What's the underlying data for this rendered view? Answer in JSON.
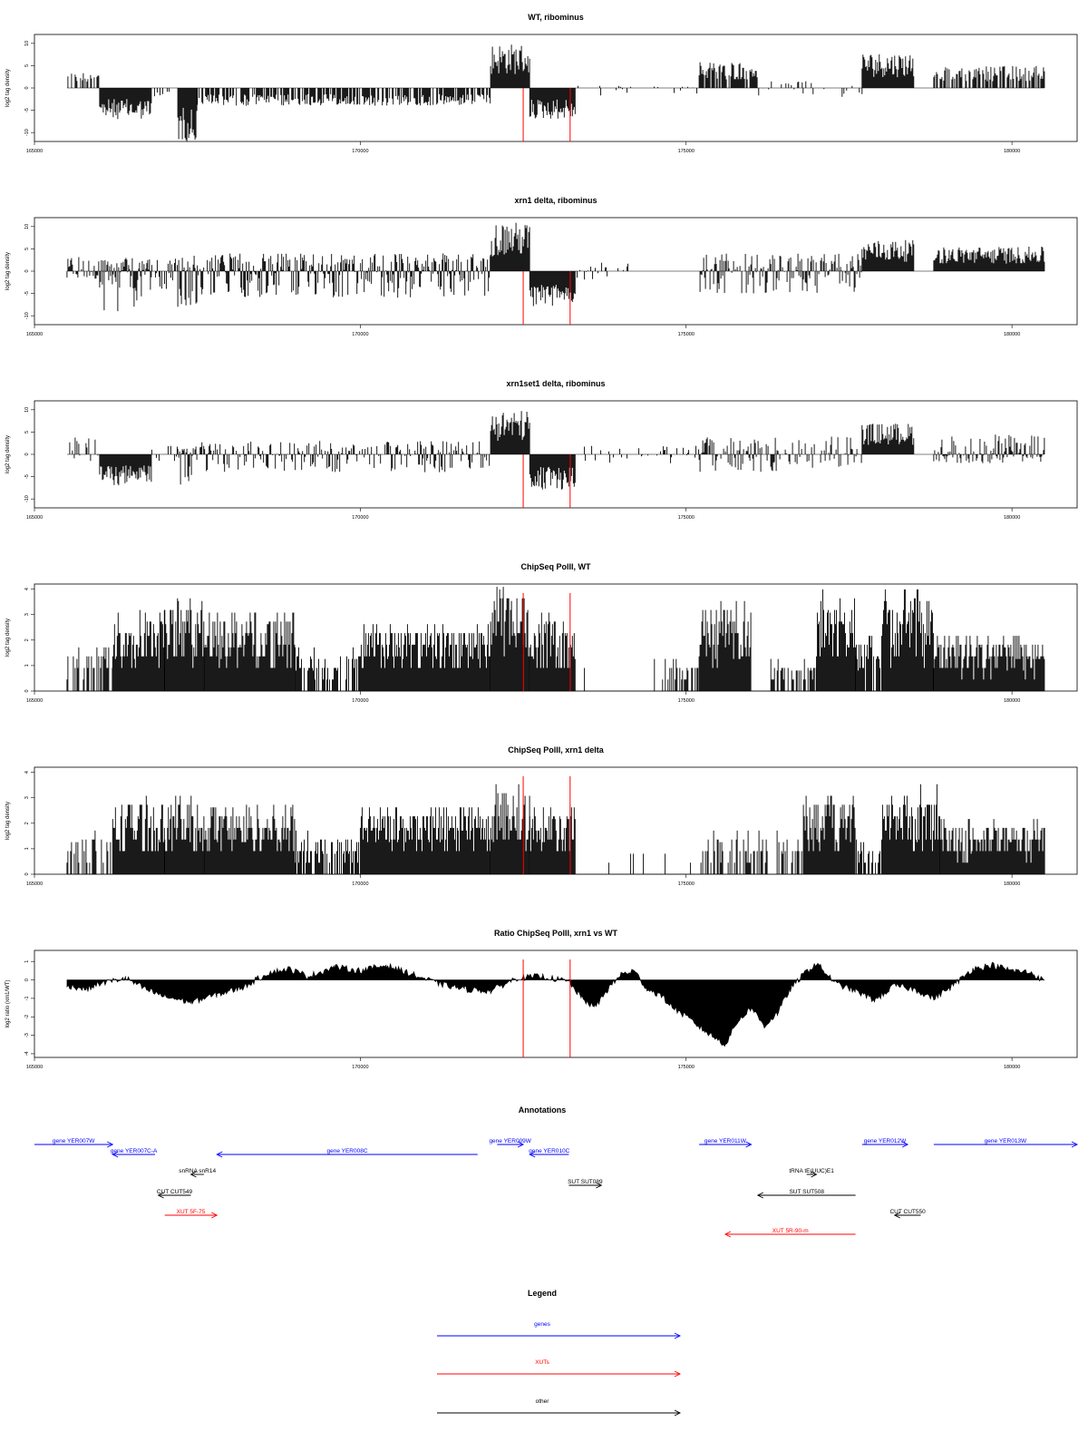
{
  "colors": {
    "gene": "#0000ff",
    "xut": "#ff0000",
    "other": "#000000",
    "marker": "#ff0000",
    "bars": "#000000"
  },
  "markers": [
    172500,
    173220
  ],
  "chart_data": [
    {
      "type": "bar",
      "title": "WT, ribominus",
      "ylabel": "log2 tag density",
      "xlim": [
        165000,
        181000
      ],
      "ylim": [
        -12,
        12
      ],
      "yticks": [
        -10,
        -5,
        0,
        5,
        10
      ],
      "ytick_labels": [
        "-10",
        "-5",
        "0",
        "5",
        "10"
      ],
      "xticks": [
        165000,
        170000,
        175000,
        180000
      ],
      "xtick_labels": [
        "165000",
        "170000",
        "175000",
        "180000"
      ],
      "segments": [
        {
          "x": [
            165500,
            166000
          ],
          "min": 0,
          "max": 3.5,
          "density": 0.5
        },
        {
          "x": [
            166000,
            166800
          ],
          "min": -7,
          "max": 0,
          "density": 1
        },
        {
          "x": [
            166800,
            167200
          ],
          "min": -2,
          "max": 0,
          "density": 0.3
        },
        {
          "x": [
            167200,
            167500
          ],
          "min": -12,
          "max": 0,
          "density": 1
        },
        {
          "x": [
            167500,
            172000
          ],
          "min": -4,
          "max": 0,
          "density": 0.7
        },
        {
          "x": [
            172000,
            172600
          ],
          "min": 0,
          "max": 10,
          "density": 1
        },
        {
          "x": [
            172600,
            173300
          ],
          "min": -7,
          "max": 0,
          "density": 1
        },
        {
          "x": [
            173300,
            175200
          ],
          "min": -2,
          "max": 0.5,
          "density": 0.1
        },
        {
          "x": [
            175200,
            176100
          ],
          "min": 0,
          "max": 6,
          "density": 0.8
        },
        {
          "x": [
            176100,
            177700
          ],
          "min": -2,
          "max": 1.5,
          "density": 0.2
        },
        {
          "x": [
            177700,
            178500
          ],
          "min": 0,
          "max": 8,
          "density": 1
        },
        {
          "x": [
            178800,
            180500
          ],
          "min": 0,
          "max": 5,
          "density": 0.7
        }
      ]
    },
    {
      "type": "bar",
      "title": "xrn1 delta, ribominus",
      "ylabel": "log2 tag density",
      "xlim": [
        165000,
        181000
      ],
      "ylim": [
        -12,
        12
      ],
      "yticks": [
        -10,
        -5,
        0,
        5,
        10
      ],
      "ytick_labels": [
        "-10",
        "-5",
        "0",
        "5",
        "10"
      ],
      "xticks": [
        165000,
        170000,
        175000,
        180000
      ],
      "xtick_labels": [
        "165000",
        "170000",
        "175000",
        "180000"
      ],
      "segments": [
        {
          "x": [
            165500,
            166000
          ],
          "min": -2,
          "max": 5,
          "density": 0.8
        },
        {
          "x": [
            166000,
            166800
          ],
          "min": -9,
          "max": 3,
          "density": 1
        },
        {
          "x": [
            166800,
            167200
          ],
          "min": -4,
          "max": 3,
          "density": 0.6
        },
        {
          "x": [
            167200,
            167500
          ],
          "min": -10,
          "max": 4,
          "density": 1
        },
        {
          "x": [
            167500,
            172000
          ],
          "min": -6,
          "max": 4,
          "density": 0.9
        },
        {
          "x": [
            172000,
            172600
          ],
          "min": 0,
          "max": 11,
          "density": 1
        },
        {
          "x": [
            172600,
            173300
          ],
          "min": -8,
          "max": 0,
          "density": 1
        },
        {
          "x": [
            173300,
            174200
          ],
          "min": -2,
          "max": 2,
          "density": 0.3
        },
        {
          "x": [
            175200,
            177700
          ],
          "min": -5,
          "max": 4,
          "density": 0.8
        },
        {
          "x": [
            177700,
            178500
          ],
          "min": 0,
          "max": 7,
          "density": 1
        },
        {
          "x": [
            178800,
            180500
          ],
          "min": 0,
          "max": 5.5,
          "density": 1
        }
      ]
    },
    {
      "type": "bar",
      "title": "xrn1set1 delta, ribominus",
      "ylabel": "log2 tag density",
      "xlim": [
        165000,
        181000
      ],
      "ylim": [
        -12,
        12
      ],
      "yticks": [
        -10,
        -5,
        0,
        5,
        10
      ],
      "ytick_labels": [
        "-10",
        "-5",
        "0",
        "5",
        "10"
      ],
      "xticks": [
        165000,
        170000,
        175000,
        180000
      ],
      "xtick_labels": [
        "165000",
        "170000",
        "175000",
        "180000"
      ],
      "segments": [
        {
          "x": [
            165500,
            166000
          ],
          "min": -2,
          "max": 4,
          "density": 0.5
        },
        {
          "x": [
            166000,
            166800
          ],
          "min": -7,
          "max": 0,
          "density": 1
        },
        {
          "x": [
            166800,
            167200
          ],
          "min": -2,
          "max": 2,
          "density": 0.3
        },
        {
          "x": [
            167200,
            167500
          ],
          "min": -11,
          "max": 2,
          "density": 1
        },
        {
          "x": [
            167500,
            172000
          ],
          "min": -4,
          "max": 3,
          "density": 0.6
        },
        {
          "x": [
            172000,
            172600
          ],
          "min": 0,
          "max": 10,
          "density": 1
        },
        {
          "x": [
            172600,
            173300
          ],
          "min": -8,
          "max": 0,
          "density": 1
        },
        {
          "x": [
            173300,
            175200
          ],
          "min": -2,
          "max": 2,
          "density": 0.2
        },
        {
          "x": [
            175200,
            177700
          ],
          "min": -4,
          "max": 4,
          "density": 0.6
        },
        {
          "x": [
            177700,
            178500
          ],
          "min": 0,
          "max": 7,
          "density": 1
        },
        {
          "x": [
            178800,
            180500
          ],
          "min": -2,
          "max": 4.5,
          "density": 0.8
        }
      ]
    },
    {
      "type": "bar",
      "title": "ChipSeq PolII, WT",
      "ylabel": "log2 tag density",
      "xlim": [
        165000,
        181000
      ],
      "ylim": [
        0,
        4.2
      ],
      "yticks": [
        0,
        1,
        2,
        3,
        4
      ],
      "ytick_labels": [
        "0",
        "1",
        "2",
        "3",
        "4"
      ],
      "xticks": [
        165000,
        170000,
        175000,
        180000
      ],
      "xtick_labels": [
        "165000",
        "170000",
        "175000",
        "180000"
      ],
      "segments": [
        {
          "x": [
            165500,
            166200
          ],
          "min": 0,
          "max": 1.6,
          "density": 0.6
        },
        {
          "x": [
            166200,
            167000
          ],
          "min": 0,
          "max": 3.2,
          "density": 1
        },
        {
          "x": [
            167000,
            167600
          ],
          "min": 0,
          "max": 3.5,
          "density": 1
        },
        {
          "x": [
            167600,
            169000
          ],
          "min": 0,
          "max": 3,
          "density": 1
        },
        {
          "x": [
            169000,
            170000
          ],
          "min": 0,
          "max": 1.6,
          "density": 0.6
        },
        {
          "x": [
            170000,
            172000
          ],
          "min": 0,
          "max": 2.5,
          "density": 1
        },
        {
          "x": [
            172000,
            172600
          ],
          "min": 0,
          "max": 4,
          "density": 1
        },
        {
          "x": [
            172600,
            173300
          ],
          "min": 0,
          "max": 2.8,
          "density": 1
        },
        {
          "x": [
            173300,
            174500
          ],
          "min": 0,
          "max": 1,
          "density": 0.05
        },
        {
          "x": [
            174500,
            175200
          ],
          "min": 0,
          "max": 1,
          "density": 0.4
        },
        {
          "x": [
            175200,
            176000
          ],
          "min": 0,
          "max": 3.4,
          "density": 1
        },
        {
          "x": [
            176300,
            177000
          ],
          "min": 0,
          "max": 1,
          "density": 0.6
        },
        {
          "x": [
            177000,
            177600
          ],
          "min": 0,
          "max": 3.6,
          "density": 1
        },
        {
          "x": [
            177600,
            178000
          ],
          "min": 0,
          "max": 2,
          "density": 0.8
        },
        {
          "x": [
            178000,
            178800
          ],
          "min": 0,
          "max": 3.6,
          "density": 1
        },
        {
          "x": [
            178800,
            180500
          ],
          "min": 0,
          "max": 2,
          "density": 1
        }
      ]
    },
    {
      "type": "bar",
      "title": "ChipSeq PolII, xrn1 delta",
      "ylabel": "log2 tag density",
      "xlim": [
        165000,
        181000
      ],
      "ylim": [
        0,
        4.2
      ],
      "yticks": [
        0,
        1,
        2,
        3,
        4
      ],
      "ytick_labels": [
        "0",
        "1",
        "2",
        "3",
        "4"
      ],
      "xticks": [
        165000,
        170000,
        175000,
        180000
      ],
      "xtick_labels": [
        "165000",
        "170000",
        "175000",
        "180000"
      ],
      "segments": [
        {
          "x": [
            165500,
            166200
          ],
          "min": 0,
          "max": 1.4,
          "density": 0.5
        },
        {
          "x": [
            166200,
            167000
          ],
          "min": 0,
          "max": 2.8,
          "density": 1
        },
        {
          "x": [
            167000,
            167600
          ],
          "min": 0,
          "max": 2.8,
          "density": 1
        },
        {
          "x": [
            167600,
            169000
          ],
          "min": 0,
          "max": 2.6,
          "density": 1
        },
        {
          "x": [
            169000,
            170000
          ],
          "min": 0,
          "max": 1.4,
          "density": 0.6
        },
        {
          "x": [
            170000,
            172000
          ],
          "min": 0,
          "max": 2.5,
          "density": 1
        },
        {
          "x": [
            172000,
            172600
          ],
          "min": 0,
          "max": 3.3,
          "density": 1
        },
        {
          "x": [
            172600,
            173300
          ],
          "min": 0,
          "max": 2.4,
          "density": 1
        },
        {
          "x": [
            173300,
            175200
          ],
          "min": 0,
          "max": 0.7,
          "density": 0.05
        },
        {
          "x": [
            175200,
            176800
          ],
          "min": 0,
          "max": 1.4,
          "density": 0.4
        },
        {
          "x": [
            176800,
            177600
          ],
          "min": 0,
          "max": 3,
          "density": 1
        },
        {
          "x": [
            177600,
            178000
          ],
          "min": 0,
          "max": 1.2,
          "density": 0.5
        },
        {
          "x": [
            178000,
            178900
          ],
          "min": 0,
          "max": 3,
          "density": 1
        },
        {
          "x": [
            178900,
            180500
          ],
          "min": 0,
          "max": 2,
          "density": 1
        }
      ]
    },
    {
      "type": "area",
      "title": "Ratio ChipSeq PolII, xrn1 vs WT",
      "ylabel": "log2 ratio (xrn1/WT)",
      "xlim": [
        165000,
        181000
      ],
      "ylim": [
        -4.2,
        1.6
      ],
      "yticks": [
        -4,
        -3,
        -2,
        -1,
        0,
        1
      ],
      "ytick_labels": [
        "-4",
        "-3",
        "-2",
        "-1",
        "0",
        "1"
      ],
      "xticks": [
        165000,
        170000,
        175000,
        180000
      ],
      "xtick_labels": [
        "165000",
        "170000",
        "175000",
        "180000"
      ],
      "x": [
        165500,
        165800,
        166000,
        166400,
        166700,
        167000,
        167400,
        167800,
        168200,
        168600,
        168900,
        169200,
        169600,
        170000,
        170400,
        170800,
        171200,
        171600,
        172000,
        172400,
        172800,
        173200,
        173400,
        173600,
        173800,
        174000,
        174200,
        174400,
        174600,
        174800,
        175000,
        175300,
        175600,
        175800,
        176000,
        176200,
        176400,
        176600,
        176800,
        177000,
        177300,
        177600,
        177900,
        178200,
        178500,
        178800,
        179100,
        179400,
        179700,
        180000,
        180300,
        180500
      ],
      "y": [
        -0.3,
        -0.5,
        -0.2,
        0.1,
        -0.5,
        -0.9,
        -1.2,
        -0.8,
        -0.4,
        0.4,
        0.6,
        0.2,
        0.7,
        0.5,
        0.8,
        0.3,
        -0.2,
        -0.5,
        -0.6,
        0.1,
        0.2,
        -0.1,
        -1,
        -1.5,
        -0.5,
        0.3,
        0.5,
        -0.5,
        -0.8,
        -1.5,
        -2,
        -2.8,
        -3.5,
        -2.2,
        -1.5,
        -2.5,
        -1.8,
        -0.5,
        0.3,
        0.9,
        -0.2,
        -0.6,
        -1.1,
        -0.3,
        -0.5,
        -1,
        -0.3,
        0.6,
        0.8,
        0.5,
        0.4,
        -0.1
      ]
    }
  ],
  "annotations": {
    "title": "Annotations",
    "features": [
      {
        "label": "gene YER007W",
        "kind": "gene",
        "start": 165000,
        "end": 166200,
        "dir": "right",
        "row": 0
      },
      {
        "label": "gene YER007C-A",
        "kind": "gene",
        "start": 166200,
        "end": 166850,
        "dir": "left",
        "row": 1
      },
      {
        "label": "gene YER008C",
        "kind": "gene",
        "start": 167800,
        "end": 171800,
        "dir": "left",
        "row": 1
      },
      {
        "label": "snRNA snR14",
        "kind": "other",
        "start": 167400,
        "end": 167600,
        "dir": "left",
        "row": 2
      },
      {
        "label": "CUT CUT549",
        "kind": "other",
        "start": 166900,
        "end": 167400,
        "dir": "left",
        "row": 4
      },
      {
        "label": "XUT 5F-75",
        "kind": "xut",
        "start": 167000,
        "end": 167800,
        "dir": "right",
        "row": 5
      },
      {
        "label": "gene YER009W",
        "kind": "gene",
        "start": 172100,
        "end": 172500,
        "dir": "right",
        "row": 0
      },
      {
        "label": "gene YER010C",
        "kind": "gene",
        "start": 172600,
        "end": 173200,
        "dir": "left",
        "row": 1
      },
      {
        "label": "SUT SUT089",
        "kind": "other",
        "start": 173200,
        "end": 173700,
        "dir": "right",
        "row": 3
      },
      {
        "label": "gene YER011W",
        "kind": "gene",
        "start": 175200,
        "end": 176000,
        "dir": "right",
        "row": 0
      },
      {
        "label": "tRNA tE(UUC)E1",
        "kind": "other",
        "start": 176850,
        "end": 177000,
        "dir": "right",
        "row": 2
      },
      {
        "label": "SUT SUT508",
        "kind": "other",
        "start": 176100,
        "end": 177600,
        "dir": "left",
        "row": 4
      },
      {
        "label": "XUT 5R-90-m",
        "kind": "xut",
        "start": 175600,
        "end": 177600,
        "dir": "left",
        "row": 6
      },
      {
        "label": "gene YER012W",
        "kind": "gene",
        "start": 177700,
        "end": 178400,
        "dir": "right",
        "row": 0
      },
      {
        "label": "CUT CUT550",
        "kind": "other",
        "start": 178200,
        "end": 178600,
        "dir": "left",
        "row": 5
      },
      {
        "label": "gene YER013W",
        "kind": "gene",
        "start": 178800,
        "end": 181000,
        "dir": "right",
        "row": 0
      }
    ]
  },
  "legend": {
    "title": "Legend",
    "items": [
      {
        "label": "genes",
        "kind": "gene"
      },
      {
        "label": "XUTs",
        "kind": "xut"
      },
      {
        "label": "other",
        "kind": "other"
      }
    ]
  }
}
